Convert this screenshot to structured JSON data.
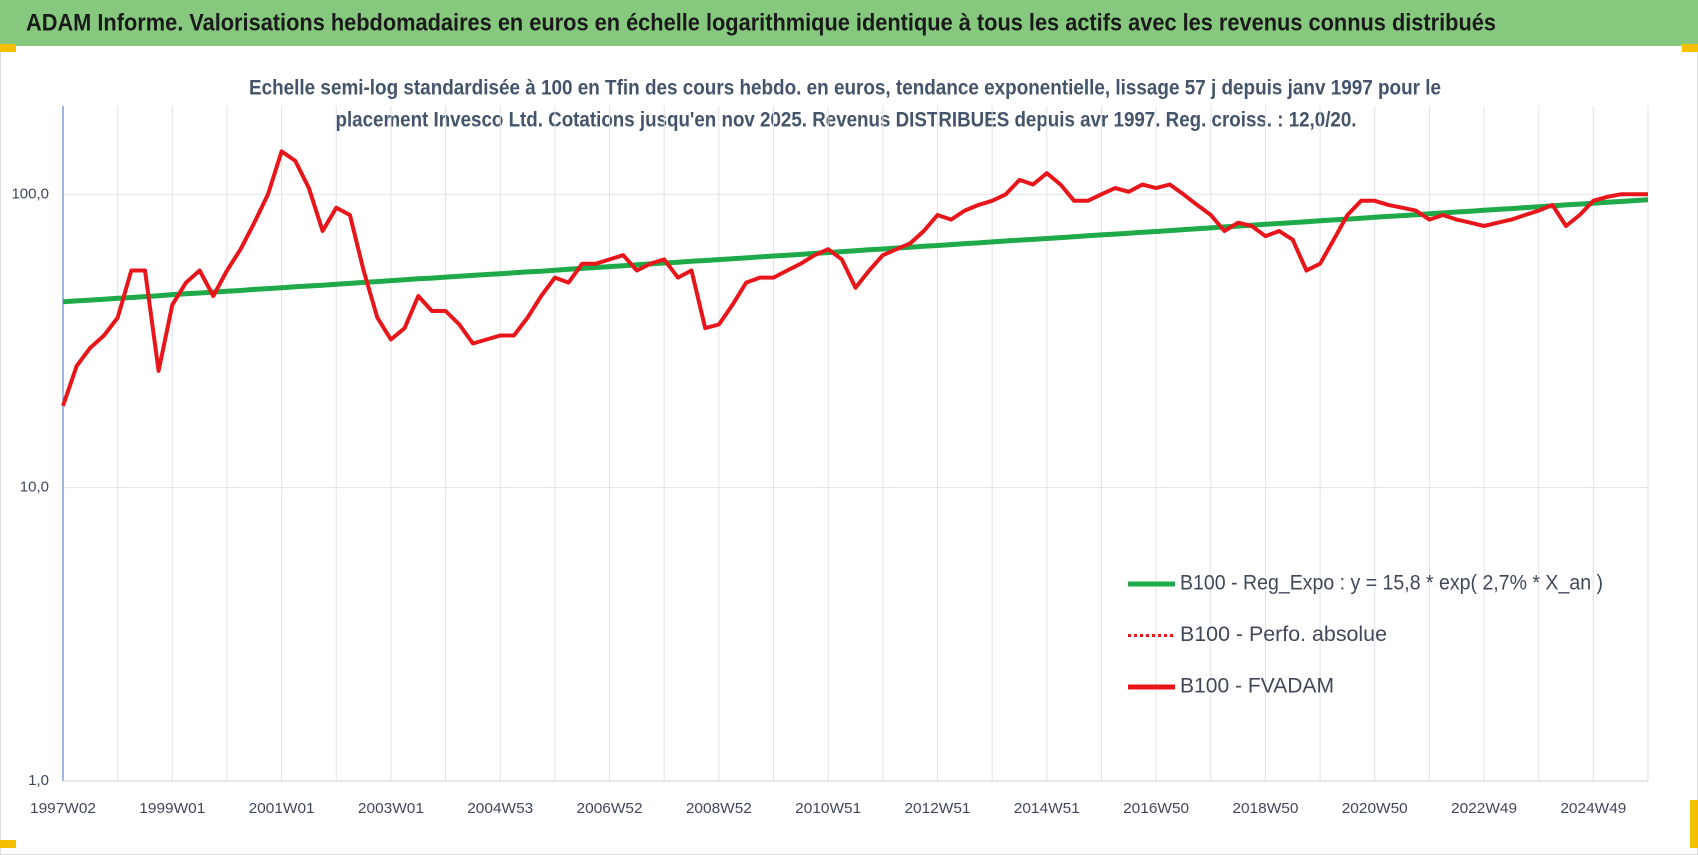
{
  "chart_data": {
    "type": "line",
    "title": "ADAM Informe. Valorisations hebdomadaires en euros en échelle logarithmique identique à tous les actifs avec les revenus connus distribués",
    "subtitle": [
      "Echelle semi-log standardisée à 100 en Tfin des cours hebdo. en euros, tendance exponentielle, lissage 57 j depuis janv 1997 pour le",
      "placement Invesco Ltd. Cotations jusqu'en nov 2025. Revenus DISTRIBUES depuis avr 1997. Reg. croiss. : 12,0/20."
    ],
    "yscale": "log",
    "ylim": [
      1,
      200
    ],
    "yticks": [
      {
        "value": 1,
        "label": "1,0"
      },
      {
        "value": 10,
        "label": "10,0"
      },
      {
        "value": 100,
        "label": "100,0"
      }
    ],
    "grid": true,
    "legend": "right",
    "categories": [
      "1997W02",
      null,
      null,
      null,
      null,
      null,
      null,
      null,
      "1999W01",
      null,
      null,
      null,
      null,
      null,
      null,
      null,
      "2001W01",
      null,
      null,
      null,
      null,
      null,
      null,
      null,
      "2003W01",
      null,
      null,
      null,
      null,
      null,
      null,
      null,
      "2004W53",
      null,
      null,
      null,
      null,
      null,
      null,
      null,
      "2006W52",
      null,
      null,
      null,
      null,
      null,
      null,
      null,
      "2008W52",
      null,
      null,
      null,
      null,
      null,
      null,
      null,
      "2010W51",
      null,
      null,
      null,
      null,
      null,
      null,
      null,
      "2012W51",
      null,
      null,
      null,
      null,
      null,
      null,
      null,
      "2014W51",
      null,
      null,
      null,
      null,
      null,
      null,
      null,
      "2016W50",
      null,
      null,
      null,
      null,
      null,
      null,
      null,
      "2018W50",
      null,
      null,
      null,
      null,
      null,
      null,
      null,
      "2020W50",
      null,
      null,
      null,
      null,
      null,
      null,
      null,
      "2022W49",
      null,
      null,
      null,
      null,
      null,
      null,
      null,
      "2024W49",
      null,
      null,
      null,
      null
    ],
    "series": [
      {
        "name": "B100 - Reg_Expo : y = 15,8 * exp( 2,7% *  X_an )",
        "color": "#1faa4a",
        "style": "solid",
        "values": [
          43.0,
          43.3,
          43.6,
          43.9,
          44.2,
          44.5,
          44.8,
          45.1,
          45.5,
          45.8,
          46.1,
          46.4,
          46.7,
          47.0,
          47.4,
          47.7,
          48.0,
          48.4,
          48.7,
          49.0,
          49.4,
          49.7,
          50.1,
          50.4,
          50.8,
          51.1,
          51.5,
          51.8,
          52.2,
          52.6,
          52.9,
          53.3,
          53.6,
          54.0,
          54.4,
          54.7,
          55.1,
          55.5,
          55.9,
          56.3,
          56.7,
          57.1,
          57.5,
          57.9,
          58.3,
          58.7,
          59.1,
          59.5,
          59.9,
          60.3,
          60.7,
          61.2,
          61.6,
          62.0,
          62.4,
          62.9,
          63.3,
          63.8,
          64.2,
          64.7,
          65.1,
          65.6,
          66.0,
          66.5,
          66.9,
          67.4,
          67.9,
          68.3,
          68.8,
          69.3,
          69.8,
          70.2,
          70.7,
          71.2,
          71.7,
          72.2,
          72.7,
          73.2,
          73.7,
          74.2,
          74.7,
          75.2,
          75.8,
          76.3,
          76.8,
          77.4,
          77.9,
          78.4,
          79.0,
          79.5,
          80.1,
          80.6,
          81.2,
          81.8,
          82.3,
          82.9,
          83.5,
          84.1,
          84.6,
          85.2,
          85.8,
          86.4,
          87.0,
          87.6,
          88.2,
          88.8,
          89.4,
          90.1,
          90.7,
          91.3,
          92.0,
          92.6,
          93.2,
          93.9,
          94.5,
          95.2,
          95.8
        ]
      },
      {
        "name": "B100 - Perfo. absolue",
        "color": "#e8161b",
        "style": "dotted",
        "values": [
          null,
          null,
          null,
          null,
          null,
          null,
          null,
          null,
          null,
          null,
          null,
          null,
          null,
          null,
          null,
          null,
          null,
          null,
          null,
          null,
          null,
          null,
          null,
          null,
          null,
          null,
          null,
          null,
          null,
          null,
          null,
          null,
          null,
          null,
          null,
          null,
          null,
          null,
          null,
          null,
          null,
          null,
          null,
          null,
          null,
          null,
          null,
          null,
          null,
          null,
          null,
          null,
          null,
          null,
          null,
          null,
          null,
          null,
          null,
          null,
          null,
          null,
          null,
          null,
          null,
          null,
          null,
          null,
          null,
          null,
          null,
          null,
          null,
          null,
          null,
          null,
          null,
          null,
          null,
          null,
          null,
          null,
          null,
          null,
          null,
          null,
          null,
          null,
          null,
          null,
          null,
          null,
          null,
          null,
          null,
          null,
          null,
          null,
          null,
          null,
          null,
          null,
          null,
          null,
          null,
          null,
          null,
          null,
          null,
          null,
          null,
          null,
          null,
          null,
          null,
          null,
          null
        ]
      },
      {
        "name": "B100 - FVADAM",
        "color": "#e8161b",
        "style": "solid",
        "values": [
          19,
          26,
          30,
          33,
          38,
          55,
          55,
          25,
          42,
          50,
          55,
          45,
          55,
          65,
          80,
          100,
          140,
          130,
          105,
          75,
          90,
          85,
          55,
          38,
          32,
          35,
          45,
          40,
          40,
          36,
          31,
          32,
          33,
          33,
          38,
          45,
          52,
          50,
          58,
          58,
          60,
          62,
          55,
          58,
          60,
          52,
          55,
          35,
          36,
          42,
          50,
          52,
          52,
          55,
          58,
          62,
          65,
          60,
          48,
          55,
          62,
          65,
          68,
          75,
          85,
          82,
          88,
          92,
          95,
          100,
          112,
          108,
          118,
          108,
          95,
          95,
          100,
          105,
          102,
          108,
          105,
          108,
          100,
          92,
          85,
          75,
          80,
          78,
          72,
          75,
          70,
          55,
          58,
          70,
          85,
          95,
          95,
          92,
          90,
          88,
          82,
          85,
          82,
          80,
          78,
          80,
          82,
          85,
          88,
          92,
          78,
          85,
          95,
          98,
          100,
          100,
          100
        ]
      }
    ]
  }
}
